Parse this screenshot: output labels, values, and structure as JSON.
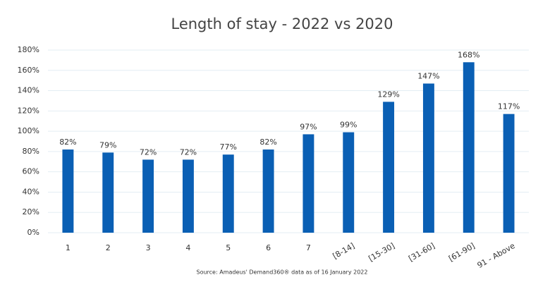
{
  "chart_data": {
    "type": "bar",
    "title": "Length of stay - 2022 vs 2020",
    "source": "Source: Amadeus' Demand360® data as of 16 January 2022",
    "categories": [
      "1",
      "2",
      "3",
      "4",
      "5",
      "6",
      "7",
      "[8-14]",
      "[15-30]",
      "[31-60]",
      "[61-90]",
      "91 - Above"
    ],
    "values": [
      82,
      79,
      72,
      72,
      77,
      82,
      97,
      99,
      129,
      147,
      168,
      117
    ],
    "value_labels": [
      "82%",
      "79%",
      "72%",
      "72%",
      "77%",
      "82%",
      "97%",
      "99%",
      "129%",
      "147%",
      "168%",
      "117%"
    ],
    "color": "#0a5fb4",
    "ylim": [
      0,
      180
    ],
    "yticks": [
      {
        "value": 0,
        "label": "0%"
      },
      {
        "value": 20,
        "label": "20%"
      },
      {
        "value": 40,
        "label": "40%"
      },
      {
        "value": 60,
        "label": "60%"
      },
      {
        "value": 80,
        "label": "80%"
      },
      {
        "value": 100,
        "label": "100%"
      },
      {
        "value": 120,
        "label": "120%"
      },
      {
        "value": 140,
        "label": "140%"
      },
      {
        "value": 160,
        "label": "160%"
      },
      {
        "value": 180,
        "label": "180%"
      }
    ],
    "grid": true
  }
}
